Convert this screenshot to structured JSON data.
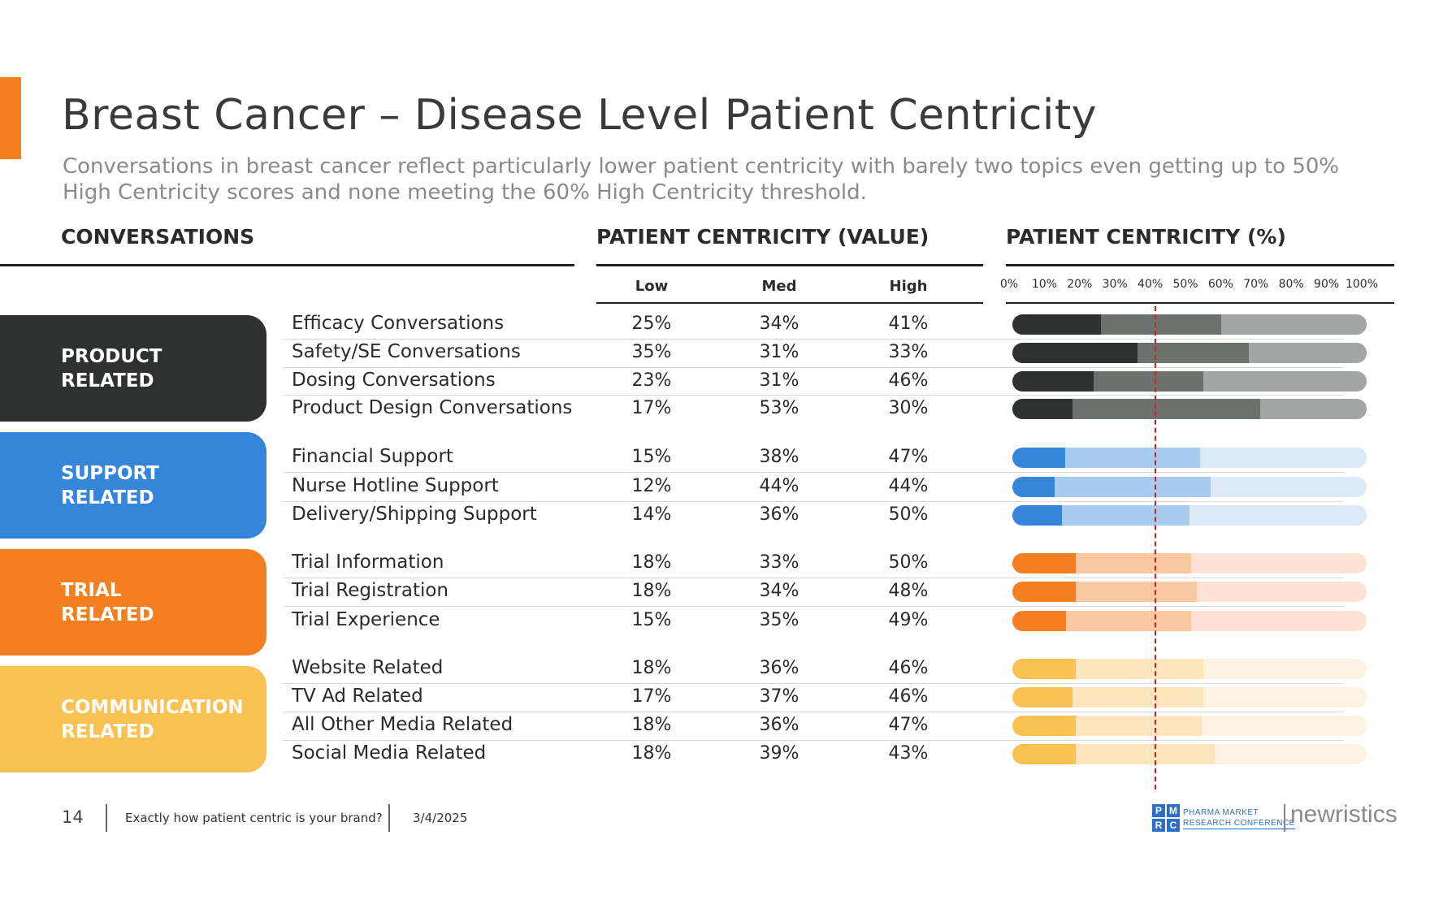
{
  "title": "Breast Cancer – Disease Level Patient Centricity",
  "subtitle": "Conversations in breast cancer reflect particularly lower patient centricity with barely two topics even getting up to 50% High Centricity scores and none meeting the 60% High Centricity threshold.",
  "headers": {
    "conversations": "CONVERSATIONS",
    "value": "PATIENT CENTRICITY (VALUE)",
    "percent": "PATIENT CENTRICITY (%)"
  },
  "levels": [
    "Low",
    "Med",
    "High"
  ],
  "axis_ticks": [
    "0%",
    "10%",
    "20%",
    "30%",
    "40%",
    "50%",
    "60%",
    "70%",
    "80%",
    "90%",
    "100%"
  ],
  "categories": [
    {
      "label_line1": "PRODUCT",
      "label_line2": "RELATED",
      "color": "#2f3131",
      "shades": [
        "#2f3131",
        "#6d716e",
        "#a2a5a3"
      ]
    },
    {
      "label_line1": "SUPPORT",
      "label_line2": "RELATED",
      "color": "#3585db",
      "shades": [
        "#3585db",
        "#a8cbf0",
        "#dce9f8"
      ]
    },
    {
      "label_line1": "TRIAL",
      "label_line2": "RELATED",
      "color": "#f37f20",
      "shades": [
        "#f37f20",
        "#f9c7a0",
        "#fde3d3"
      ]
    },
    {
      "label_line1": "COMMUNICATION",
      "label_line2": "RELATED",
      "color": "#fcc153",
      "shades": [
        "#fcc153",
        "#fde6bd",
        "#fef3e2"
      ]
    }
  ],
  "chart_data": {
    "type": "bar",
    "stacked": true,
    "orientation": "horizontal",
    "title": "PATIENT CENTRICITY (%)",
    "xlim": [
      0,
      100
    ],
    "threshold": 40,
    "series_names": [
      "Low",
      "Med",
      "High"
    ],
    "rows": [
      {
        "category": 0,
        "name": "Efficacy Conversations",
        "values": [
          25,
          34,
          41
        ],
        "labels": [
          "25%",
          "34%",
          "41%"
        ]
      },
      {
        "category": 0,
        "name": "Safety/SE Conversations",
        "values": [
          35,
          31,
          33
        ],
        "labels": [
          "35%",
          "31%",
          "33%"
        ]
      },
      {
        "category": 0,
        "name": "Dosing Conversations",
        "values": [
          23,
          31,
          46
        ],
        "labels": [
          "23%",
          "31%",
          "46%"
        ]
      },
      {
        "category": 0,
        "name": "Product Design Conversations",
        "values": [
          17,
          53,
          30
        ],
        "labels": [
          "17%",
          "53%",
          "30%"
        ]
      },
      {
        "category": 1,
        "name": "Financial Support",
        "values": [
          15,
          38,
          47
        ],
        "labels": [
          "15%",
          "38%",
          "47%"
        ]
      },
      {
        "category": 1,
        "name": "Nurse Hotline Support",
        "values": [
          12,
          44,
          44
        ],
        "labels": [
          "12%",
          "44%",
          "44%"
        ]
      },
      {
        "category": 1,
        "name": "Delivery/Shipping Support",
        "values": [
          14,
          36,
          50
        ],
        "labels": [
          "14%",
          "36%",
          "50%"
        ]
      },
      {
        "category": 2,
        "name": "Trial Information",
        "values": [
          18,
          33,
          50
        ],
        "labels": [
          "18%",
          "33%",
          "50%"
        ]
      },
      {
        "category": 2,
        "name": "Trial Registration",
        "values": [
          18,
          34,
          48
        ],
        "labels": [
          "18%",
          "34%",
          "48%"
        ]
      },
      {
        "category": 2,
        "name": "Trial Experience",
        "values": [
          15,
          35,
          49
        ],
        "labels": [
          "15%",
          "35%",
          "49%"
        ]
      },
      {
        "category": 3,
        "name": "Website Related",
        "values": [
          18,
          36,
          46
        ],
        "labels": [
          "18%",
          "36%",
          "46%"
        ]
      },
      {
        "category": 3,
        "name": "TV Ad Related",
        "values": [
          17,
          37,
          46
        ],
        "labels": [
          "17%",
          "37%",
          "46%"
        ]
      },
      {
        "category": 3,
        "name": "All Other Media Related",
        "values": [
          18,
          36,
          47
        ],
        "labels": [
          "18%",
          "36%",
          "47%"
        ]
      },
      {
        "category": 3,
        "name": "Social Media Related",
        "values": [
          18,
          39,
          43
        ],
        "labels": [
          "18%",
          "39%",
          "43%"
        ]
      }
    ]
  },
  "footer": {
    "page_number": "14",
    "tagline": "Exactly how patient centric is your brand?",
    "date": "3/4/2025",
    "logo_pmrc_letters": [
      "P",
      "M",
      "R",
      "C"
    ],
    "logo_pmrc_line1": "PHARMA MARKET",
    "logo_pmrc_line2": "RESEARCH CONFERENCE",
    "logo_newristics": "newristics"
  }
}
